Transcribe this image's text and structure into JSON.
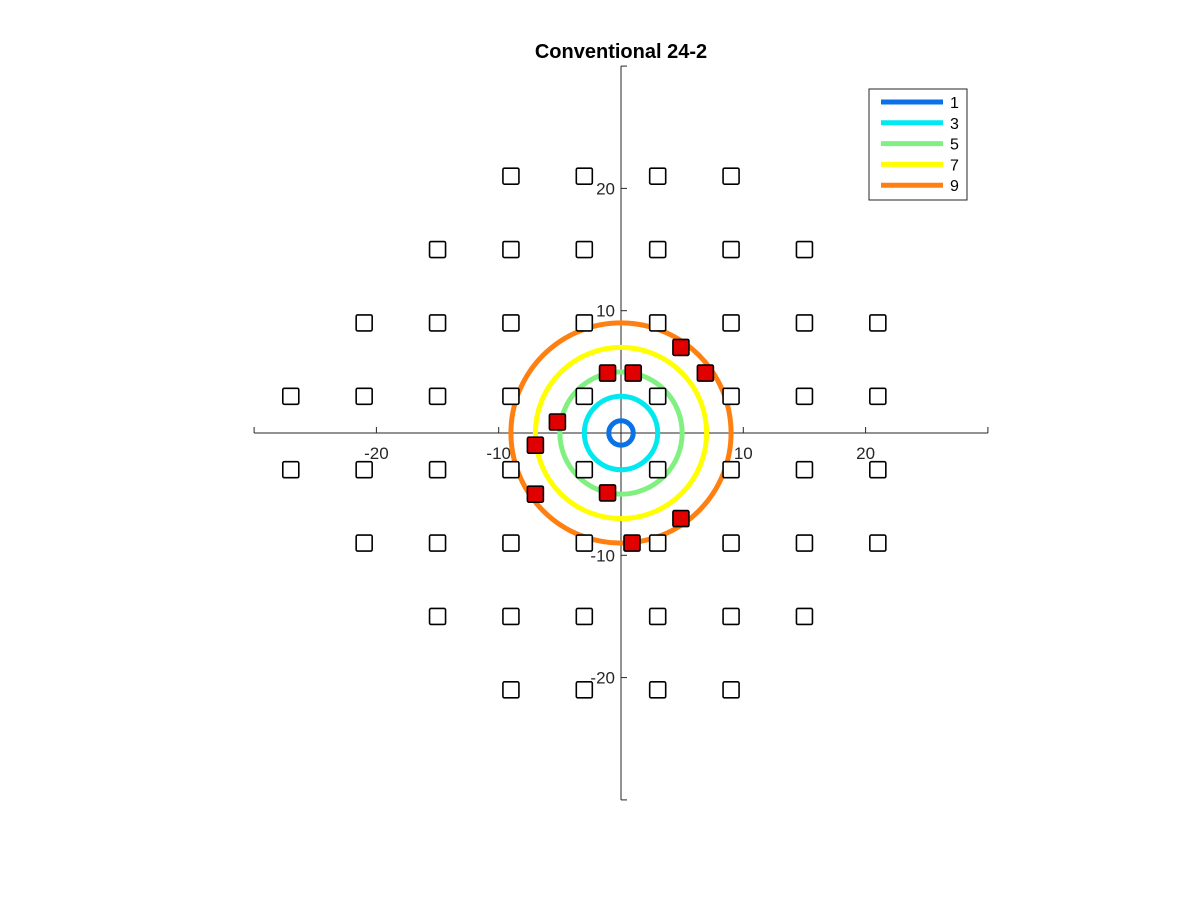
{
  "chart_data": {
    "type": "scatter",
    "title": "Conventional 24-2",
    "xlabel": "",
    "ylabel": "",
    "xlim": [
      -30,
      30
    ],
    "ylim": [
      -30,
      30
    ],
    "xticks": [
      -20,
      -10,
      10,
      20
    ],
    "yticks": [
      20,
      10,
      -10,
      -20
    ],
    "grid": false,
    "legend_position": "top-right",
    "colors": {
      "axis": "#262626",
      "marker_edge": "#000000",
      "marker_fill_conventional": "#ffffff",
      "marker_fill_highlight": "#e00000"
    },
    "contours": [
      {
        "name": "1",
        "radius": 1,
        "color": "#0a72e6"
      },
      {
        "name": "3",
        "radius": 3,
        "color": "#00e8f0"
      },
      {
        "name": "5",
        "radius": 5,
        "color": "#80f080"
      },
      {
        "name": "7",
        "radius": 7,
        "color": "#ffff00"
      },
      {
        "name": "9",
        "radius": 9,
        "color": "#ff7f10"
      }
    ],
    "conventional_points": [
      [
        -9,
        21
      ],
      [
        -3,
        21
      ],
      [
        3,
        21
      ],
      [
        9,
        21
      ],
      [
        -15,
        15
      ],
      [
        -9,
        15
      ],
      [
        -3,
        15
      ],
      [
        3,
        15
      ],
      [
        9,
        15
      ],
      [
        15,
        15
      ],
      [
        -21,
        9
      ],
      [
        -15,
        9
      ],
      [
        -9,
        9
      ],
      [
        -3,
        9
      ],
      [
        3,
        9
      ],
      [
        9,
        9
      ],
      [
        15,
        9
      ],
      [
        21,
        9
      ],
      [
        -27,
        3
      ],
      [
        -21,
        3
      ],
      [
        -15,
        3
      ],
      [
        -9,
        3
      ],
      [
        -3,
        3
      ],
      [
        3,
        3
      ],
      [
        9,
        3
      ],
      [
        15,
        3
      ],
      [
        21,
        3
      ],
      [
        -27,
        -3
      ],
      [
        -21,
        -3
      ],
      [
        -15,
        -3
      ],
      [
        -9,
        -3
      ],
      [
        -3,
        -3
      ],
      [
        3,
        -3
      ],
      [
        9,
        -3
      ],
      [
        15,
        -3
      ],
      [
        21,
        -3
      ],
      [
        -21,
        -9
      ],
      [
        -15,
        -9
      ],
      [
        -9,
        -9
      ],
      [
        -3,
        -9
      ],
      [
        3,
        -9
      ],
      [
        9,
        -9
      ],
      [
        15,
        -9
      ],
      [
        21,
        -9
      ],
      [
        -15,
        -15
      ],
      [
        -9,
        -15
      ],
      [
        -3,
        -15
      ],
      [
        3,
        -15
      ],
      [
        9,
        -15
      ],
      [
        15,
        -15
      ],
      [
        -9,
        -21
      ],
      [
        -3,
        -21
      ],
      [
        3,
        -21
      ],
      [
        9,
        -21
      ]
    ],
    "highlight_points": [
      [
        4.9,
        7.0
      ],
      [
        6.9,
        4.9
      ],
      [
        -1.1,
        4.9
      ],
      [
        1.0,
        4.9
      ],
      [
        -5.2,
        0.9
      ],
      [
        -7.0,
        -1.0
      ],
      [
        -7.0,
        -5.0
      ],
      [
        -1.1,
        -4.9
      ],
      [
        4.9,
        -7.0
      ],
      [
        0.9,
        -9.0
      ]
    ]
  }
}
